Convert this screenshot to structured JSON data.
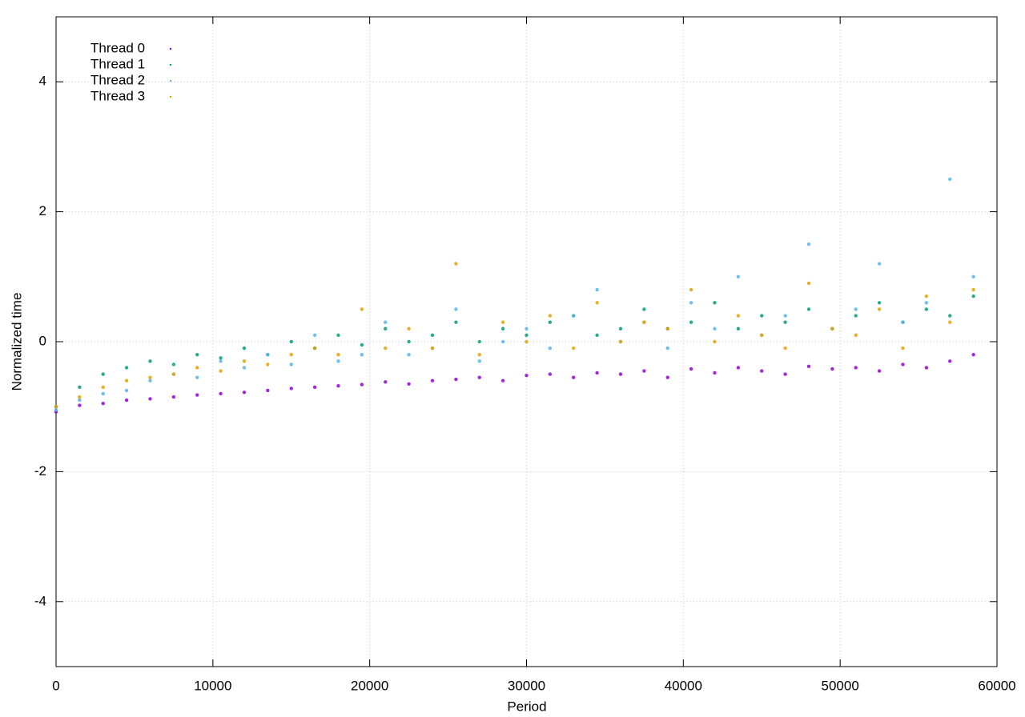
{
  "chart_data": {
    "type": "scatter",
    "xlabel": "Period",
    "ylabel": "Normalized time",
    "xlim": [
      0,
      60000
    ],
    "ylim": [
      -5,
      5
    ],
    "xticks": [
      0,
      10000,
      20000,
      30000,
      40000,
      50000,
      60000
    ],
    "yticks": [
      -4,
      -2,
      0,
      2,
      4
    ],
    "grid": true,
    "legend": "top-left",
    "x": [
      0,
      1500,
      3000,
      4500,
      6000,
      7500,
      9000,
      10500,
      12000,
      13500,
      15000,
      16500,
      18000,
      19500,
      21000,
      22500,
      24000,
      25500,
      27000,
      28500,
      30000,
      31500,
      33000,
      34500,
      36000,
      37500,
      39000,
      40500,
      42000,
      43500,
      45000,
      46500,
      48000,
      49500,
      51000,
      52500,
      54000,
      55500,
      57000,
      58500
    ],
    "series": [
      {
        "name": "Thread 0",
        "color": "#9400d3",
        "values": [
          -1.08,
          -0.98,
          -0.95,
          -0.9,
          -0.88,
          -0.85,
          -0.82,
          -0.8,
          -0.78,
          -0.75,
          -0.72,
          -0.7,
          -0.68,
          -0.66,
          -0.62,
          -0.65,
          -0.6,
          -0.58,
          -0.55,
          -0.6,
          -0.52,
          -0.5,
          -0.55,
          -0.48,
          -0.5,
          -0.45,
          -0.55,
          -0.42,
          -0.48,
          -0.4,
          -0.45,
          -0.5,
          -0.38,
          -0.42,
          -0.4,
          -0.45,
          -0.35,
          -0.4,
          -0.3,
          -0.2
        ]
      },
      {
        "name": "Thread 1",
        "color": "#009e73",
        "values": [
          -1.0,
          -0.7,
          -0.5,
          -0.4,
          -0.3,
          -0.35,
          -0.2,
          -0.25,
          -0.1,
          -0.2,
          0.0,
          -0.1,
          0.1,
          -0.05,
          0.2,
          0.0,
          0.1,
          0.3,
          0.0,
          0.2,
          0.1,
          0.3,
          0.4,
          0.1,
          0.2,
          0.5,
          0.2,
          0.3,
          0.6,
          0.2,
          0.4,
          0.3,
          0.5,
          0.2,
          0.4,
          0.6,
          0.3,
          0.5,
          0.4,
          0.7
        ]
      },
      {
        "name": "Thread 2",
        "color": "#56b4e9",
        "values": [
          -1.05,
          -0.9,
          -0.8,
          -0.75,
          -0.6,
          -0.5,
          -0.55,
          -0.3,
          -0.4,
          -0.2,
          -0.35,
          0.1,
          -0.3,
          -0.2,
          0.3,
          -0.2,
          -0.1,
          0.5,
          -0.3,
          0.0,
          0.2,
          -0.1,
          0.4,
          0.8,
          0.0,
          0.3,
          -0.1,
          0.6,
          0.2,
          1.0,
          0.1,
          0.4,
          1.5,
          0.2,
          0.5,
          1.2,
          0.3,
          0.6,
          2.5,
          1.0
        ]
      },
      {
        "name": "Thread 3",
        "color": "#e69f00",
        "values": [
          -1.0,
          -0.85,
          -0.7,
          -0.6,
          -0.55,
          -0.5,
          -0.4,
          -0.45,
          -0.3,
          -0.35,
          -0.2,
          -0.1,
          -0.2,
          0.5,
          -0.1,
          0.2,
          -0.1,
          1.2,
          -0.2,
          0.3,
          0.0,
          0.4,
          -0.1,
          0.6,
          0.0,
          0.3,
          0.2,
          0.8,
          0.0,
          0.4,
          0.1,
          -0.1,
          0.9,
          0.2,
          0.1,
          0.5,
          -0.1,
          0.7,
          0.3,
          0.8
        ]
      }
    ]
  }
}
